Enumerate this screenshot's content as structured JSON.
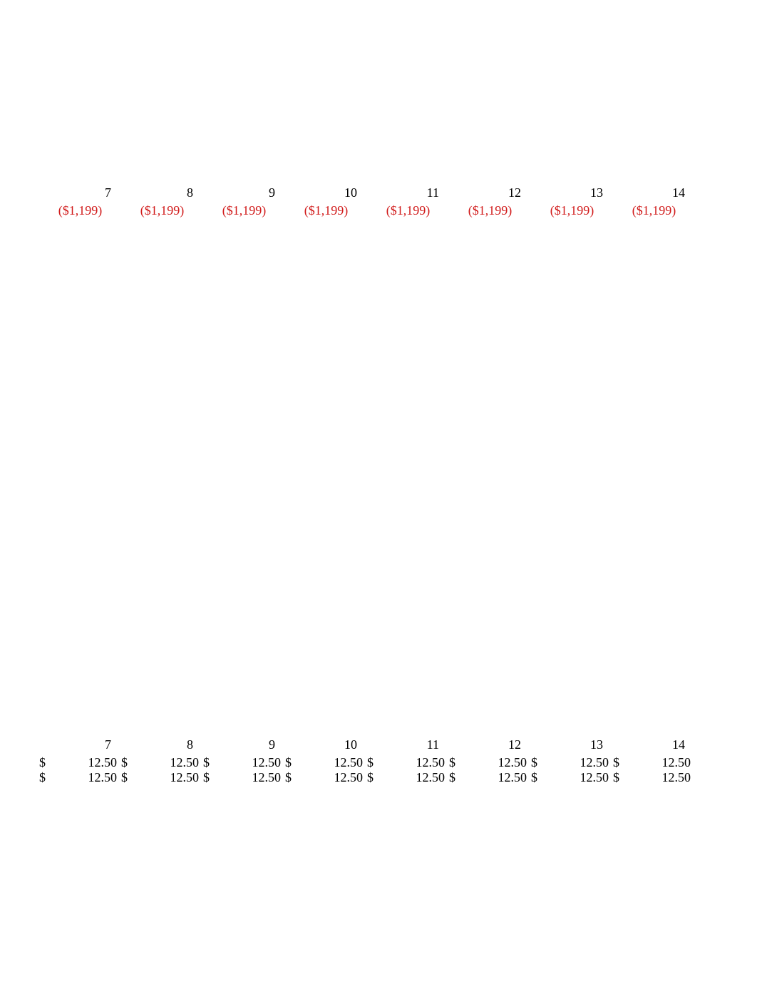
{
  "colors": {
    "background": "#ffffff",
    "text": "#000000",
    "negative": "#d11a1a"
  },
  "typography": {
    "font_family": "Georgia, 'Times New Roman', serif",
    "font_size_pt": 14
  },
  "top_block": {
    "headers": [
      "7",
      "8",
      "9",
      "10",
      "11",
      "12",
      "13",
      "14"
    ],
    "negatives": [
      "($1,199)",
      "($1,199)",
      "($1,199)",
      "($1,199)",
      "($1,199)",
      "($1,199)",
      "($1,199)",
      "($1,199)"
    ]
  },
  "bottom_block": {
    "headers": [
      "7",
      "8",
      "9",
      "10",
      "11",
      "12",
      "13",
      "14"
    ],
    "currency_symbol": "$",
    "row1": [
      "12.50",
      "12.50",
      "12.50",
      "12.50",
      "12.50",
      "12.50",
      "12.50",
      "12.50"
    ],
    "row2": [
      "12.50",
      "12.50",
      "12.50",
      "12.50",
      "12.50",
      "12.50",
      "12.50",
      "12.50"
    ]
  }
}
